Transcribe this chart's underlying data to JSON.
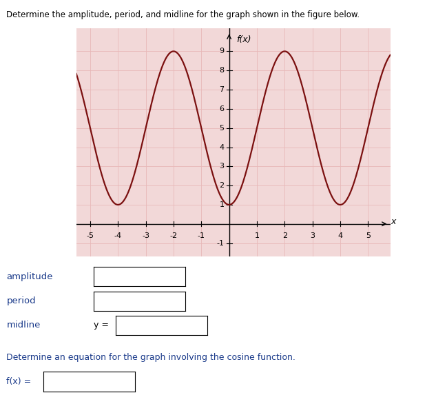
{
  "title_text": "Determine the amplitude, period, and midline for the graph shown in the figure below.",
  "fx_label": "f(x)",
  "x_label": "x",
  "xlim": [
    -5.5,
    5.8
  ],
  "ylim": [
    -1.7,
    10.2
  ],
  "xticks": [
    -5,
    -4,
    -3,
    -2,
    -1,
    1,
    2,
    3,
    4,
    5
  ],
  "yticks": [
    -1,
    1,
    2,
    3,
    4,
    5,
    6,
    7,
    8,
    9
  ],
  "amplitude": 4,
  "midline": 5,
  "period": 4,
  "curve_color": "#7B1010",
  "grid_color": "#e8b8b8",
  "background_color": "#f2d8d8",
  "label_color": "#1a3a8a",
  "bottom_labels": [
    "amplitude",
    "period",
    "midline"
  ],
  "footer_text": "Determine an equation for the graph involving the cosine function.",
  "footer_label": "f(x) =",
  "fig_width": 6.33,
  "fig_height": 5.86
}
